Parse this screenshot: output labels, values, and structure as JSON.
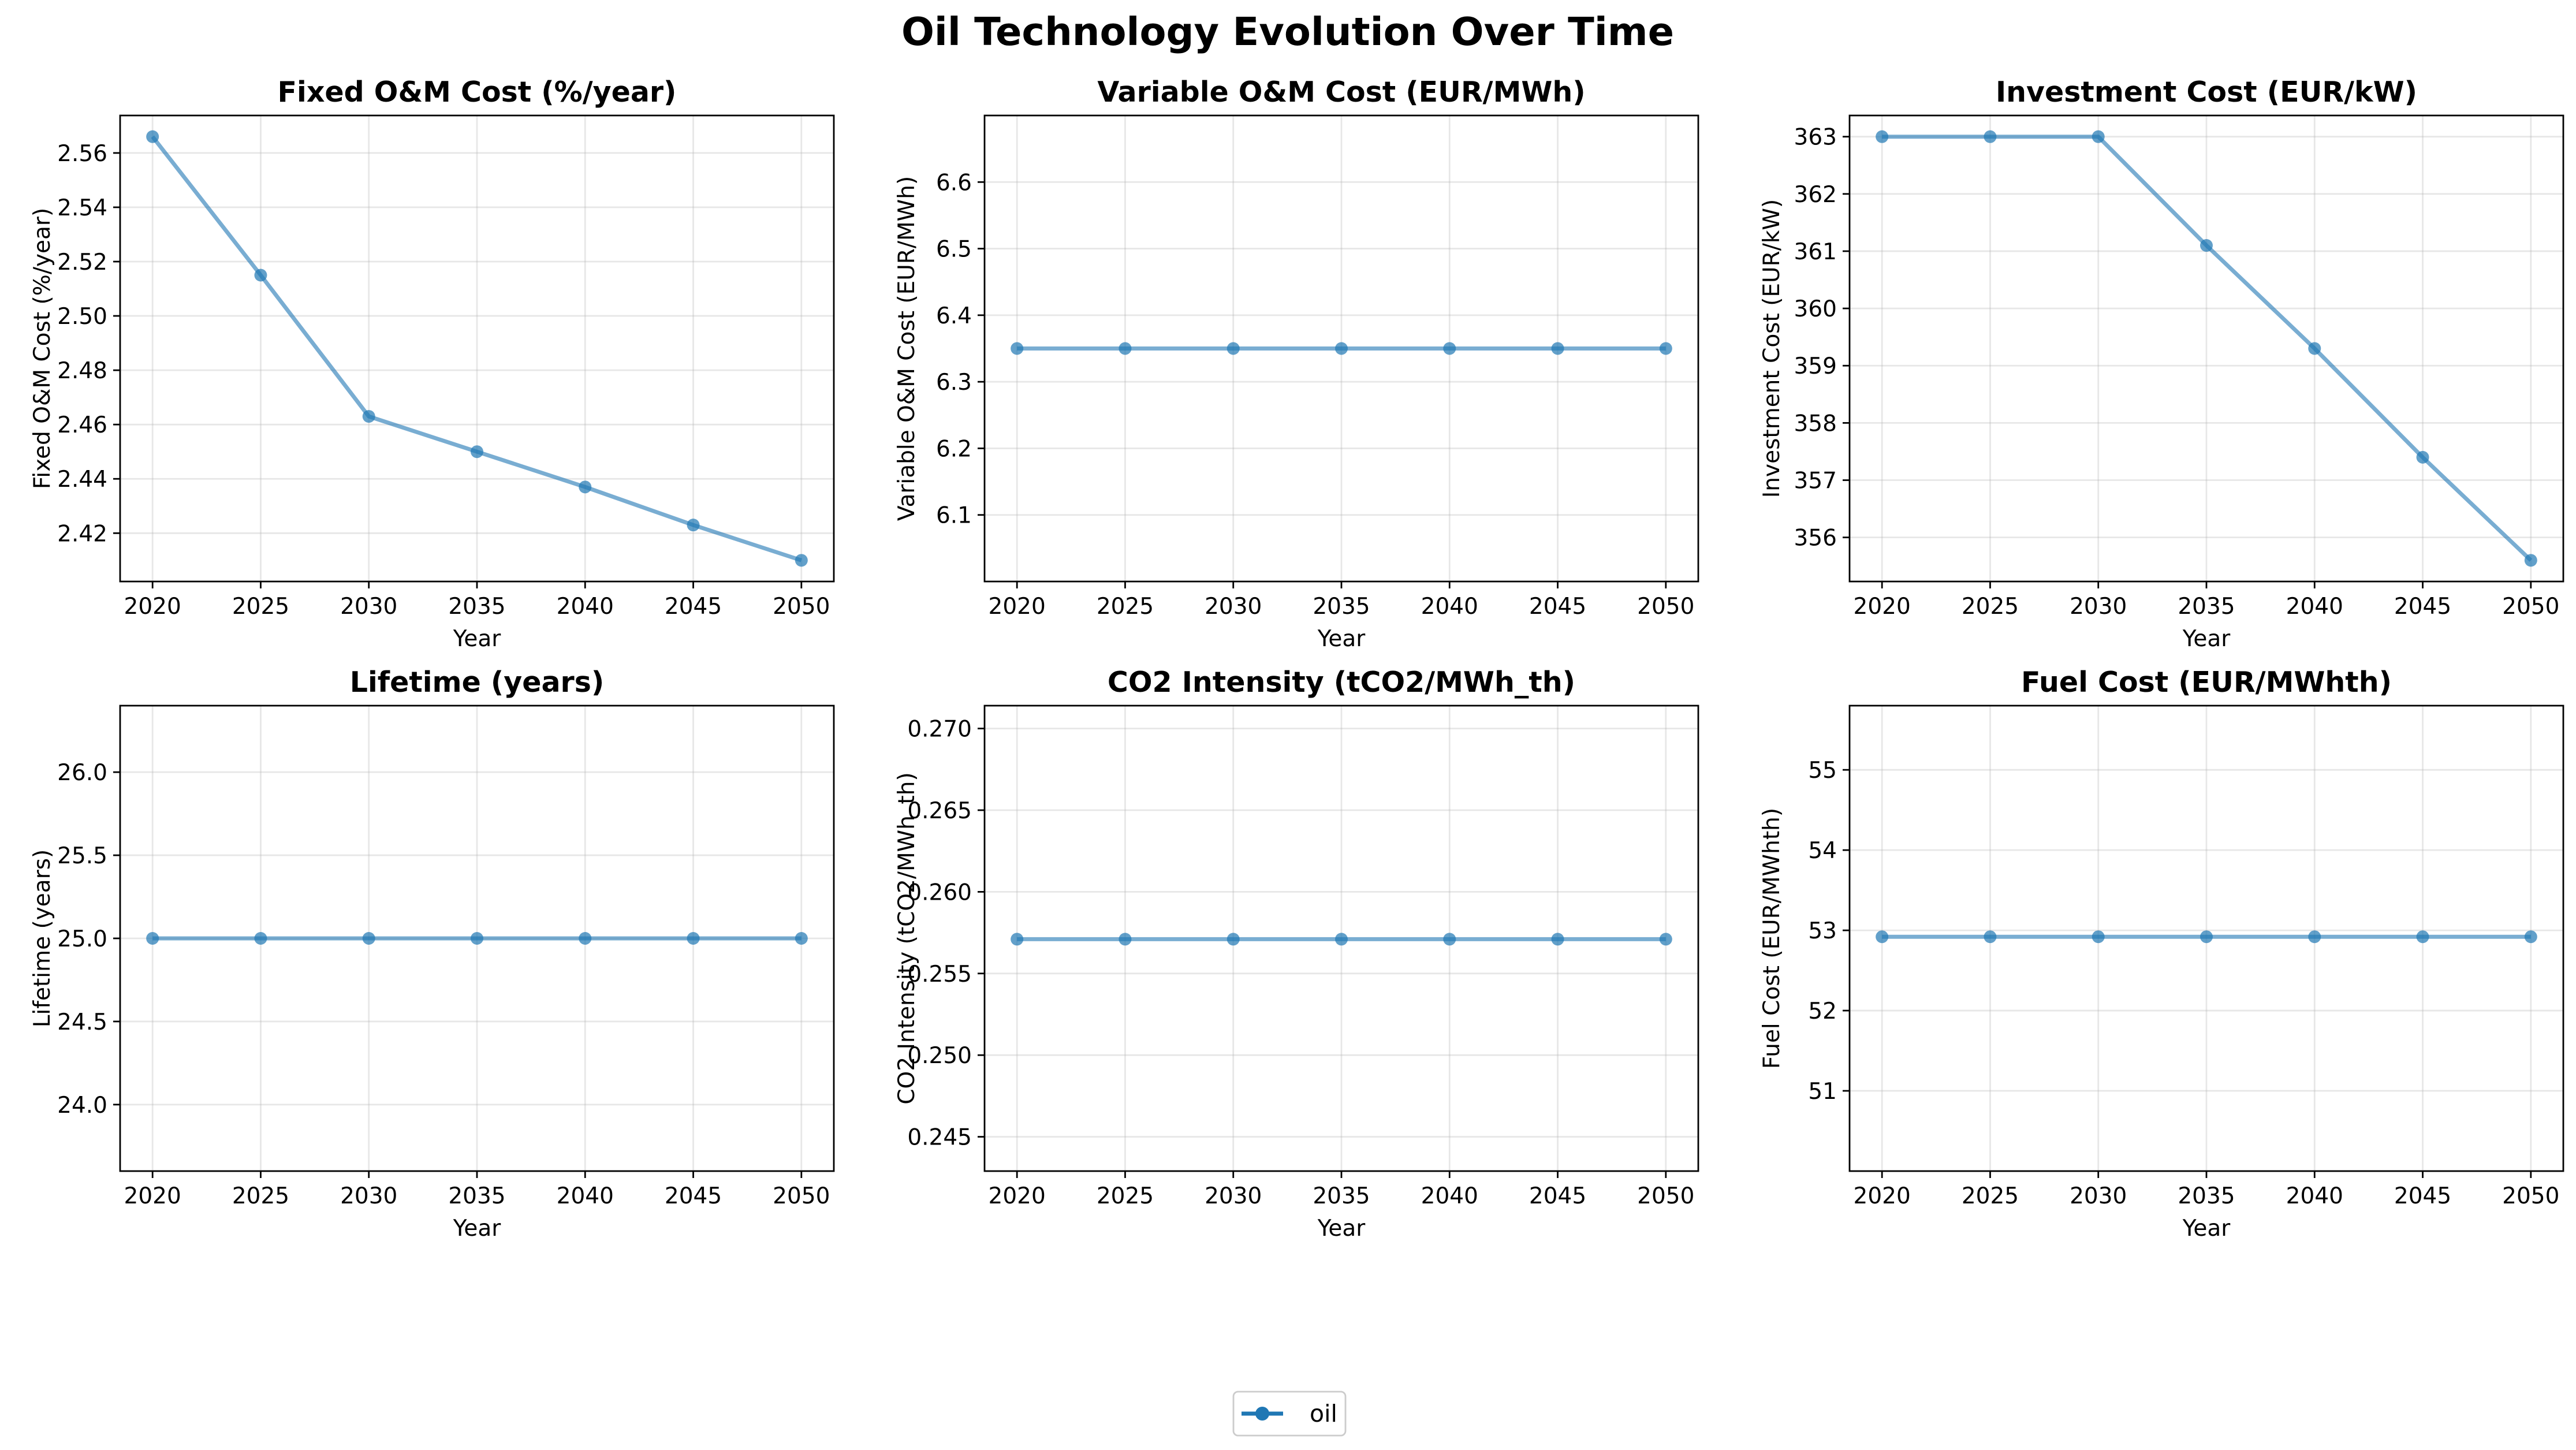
{
  "figure": {
    "title": "Oil Technology Evolution Over Time",
    "legend": {
      "placement": "bottom-center",
      "entries": [
        {
          "label": "oil"
        }
      ]
    },
    "series_color": "#1f77b4"
  },
  "chart_data": [
    {
      "type": "line",
      "title": "Fixed O&M Cost (%/year)",
      "xlabel": "Year",
      "ylabel": "Fixed O&M Cost (%/year)",
      "x": [
        2020,
        2025,
        2030,
        2035,
        2040,
        2045,
        2050
      ],
      "series": [
        {
          "name": "oil",
          "values": [
            2.566,
            2.515,
            2.463,
            2.45,
            2.437,
            2.423,
            2.41
          ]
        }
      ],
      "xlim": [
        2018.5,
        2051.5
      ],
      "ylim": [
        2.4022,
        2.5738
      ],
      "xticks": [
        2020,
        2025,
        2030,
        2035,
        2040,
        2045,
        2050
      ],
      "xtick_labels": [
        "2020",
        "2025",
        "2030",
        "2035",
        "2040",
        "2045",
        "2050"
      ],
      "yticks": [
        2.42,
        2.44,
        2.46,
        2.48,
        2.5,
        2.52,
        2.54,
        2.56
      ],
      "ytick_labels": [
        "2.42",
        "2.44",
        "2.46",
        "2.48",
        "2.50",
        "2.52",
        "2.54",
        "2.56"
      ],
      "grid": true
    },
    {
      "type": "line",
      "title": "Variable O&M Cost (EUR/MWh)",
      "xlabel": "Year",
      "ylabel": "Variable O&M Cost (EUR/MWh)",
      "x": [
        2020,
        2025,
        2030,
        2035,
        2040,
        2045,
        2050
      ],
      "series": [
        {
          "name": "oil",
          "values": [
            6.35,
            6.35,
            6.35,
            6.35,
            6.35,
            6.35,
            6.35
          ]
        }
      ],
      "xlim": [
        2018.5,
        2051.5
      ],
      "ylim": [
        6.0,
        6.7
      ],
      "xticks": [
        2020,
        2025,
        2030,
        2035,
        2040,
        2045,
        2050
      ],
      "xtick_labels": [
        "2020",
        "2025",
        "2030",
        "2035",
        "2040",
        "2045",
        "2050"
      ],
      "yticks": [
        6.1,
        6.2,
        6.3,
        6.4,
        6.5,
        6.6
      ],
      "ytick_labels": [
        "6.1",
        "6.2",
        "6.3",
        "6.4",
        "6.5",
        "6.6"
      ],
      "grid": true
    },
    {
      "type": "line",
      "title": "Investment Cost (EUR/kW)",
      "xlabel": "Year",
      "ylabel": "Investment Cost (EUR/kW)",
      "x": [
        2020,
        2025,
        2030,
        2035,
        2040,
        2045,
        2050
      ],
      "series": [
        {
          "name": "oil",
          "values": [
            363.0,
            363.0,
            363.0,
            361.1,
            359.3,
            357.4,
            355.6
          ]
        }
      ],
      "xlim": [
        2018.5,
        2051.5
      ],
      "ylim": [
        355.23,
        363.37
      ],
      "xticks": [
        2020,
        2025,
        2030,
        2035,
        2040,
        2045,
        2050
      ],
      "xtick_labels": [
        "2020",
        "2025",
        "2030",
        "2035",
        "2040",
        "2045",
        "2050"
      ],
      "yticks": [
        356,
        357,
        358,
        359,
        360,
        361,
        362,
        363
      ],
      "ytick_labels": [
        "356",
        "357",
        "358",
        "359",
        "360",
        "361",
        "362",
        "363"
      ],
      "grid": true
    },
    {
      "type": "line",
      "title": "Lifetime (years)",
      "xlabel": "Year",
      "ylabel": "Lifetime (years)",
      "x": [
        2020,
        2025,
        2030,
        2035,
        2040,
        2045,
        2050
      ],
      "series": [
        {
          "name": "oil",
          "values": [
            25.0,
            25.0,
            25.0,
            25.0,
            25.0,
            25.0,
            25.0
          ]
        }
      ],
      "xlim": [
        2018.5,
        2051.5
      ],
      "ylim": [
        23.6,
        26.4
      ],
      "xticks": [
        2020,
        2025,
        2030,
        2035,
        2040,
        2045,
        2050
      ],
      "xtick_labels": [
        "2020",
        "2025",
        "2030",
        "2035",
        "2040",
        "2045",
        "2050"
      ],
      "yticks": [
        24.0,
        24.5,
        25.0,
        25.5,
        26.0
      ],
      "ytick_labels": [
        "24.0",
        "24.5",
        "25.0",
        "25.5",
        "26.0"
      ],
      "grid": true
    },
    {
      "type": "line",
      "title": "CO2 Intensity (tCO2/MWh_th)",
      "xlabel": "Year",
      "ylabel": "CO2 Intensity (tCO2/MWh_th)",
      "x": [
        2020,
        2025,
        2030,
        2035,
        2040,
        2045,
        2050
      ],
      "series": [
        {
          "name": "oil",
          "values": [
            0.2571,
            0.2571,
            0.2571,
            0.2571,
            0.2571,
            0.2571,
            0.2571
          ]
        }
      ],
      "xlim": [
        2018.5,
        2051.5
      ],
      "ylim": [
        0.2429,
        0.2714
      ],
      "xticks": [
        2020,
        2025,
        2030,
        2035,
        2040,
        2045,
        2050
      ],
      "xtick_labels": [
        "2020",
        "2025",
        "2030",
        "2035",
        "2040",
        "2045",
        "2050"
      ],
      "yticks": [
        0.245,
        0.25,
        0.255,
        0.26,
        0.265,
        0.27
      ],
      "ytick_labels": [
        "0.245",
        "0.250",
        "0.255",
        "0.260",
        "0.265",
        "0.270"
      ],
      "grid": true
    },
    {
      "type": "line",
      "title": "Fuel Cost (EUR/MWhth)",
      "xlabel": "Year",
      "ylabel": "Fuel Cost (EUR/MWhth)",
      "x": [
        2020,
        2025,
        2030,
        2035,
        2040,
        2045,
        2050
      ],
      "series": [
        {
          "name": "oil",
          "values": [
            52.92,
            52.92,
            52.92,
            52.92,
            52.92,
            52.92,
            52.92
          ]
        }
      ],
      "xlim": [
        2018.5,
        2051.5
      ],
      "ylim": [
        50.0,
        55.8
      ],
      "xticks": [
        2020,
        2025,
        2030,
        2035,
        2040,
        2045,
        2050
      ],
      "xtick_labels": [
        "2020",
        "2025",
        "2030",
        "2035",
        "2040",
        "2045",
        "2050"
      ],
      "yticks": [
        51,
        52,
        53,
        54,
        55
      ],
      "ytick_labels": [
        "51",
        "52",
        "53",
        "54",
        "55"
      ],
      "grid": true
    }
  ]
}
